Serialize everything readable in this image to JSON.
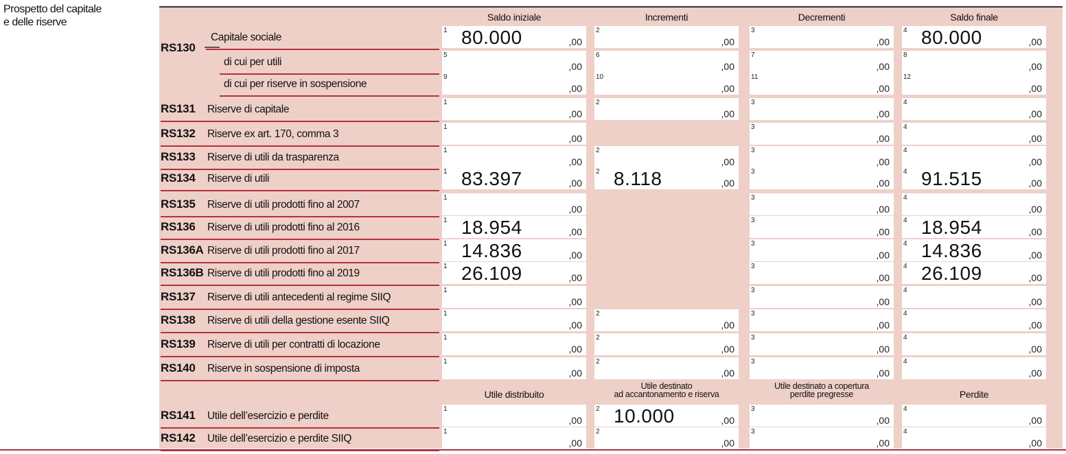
{
  "section": {
    "line1": "Prospetto del capitale",
    "line2": "e delle riserve"
  },
  "headers": {
    "top": [
      "Saldo iniziale",
      "Incrementi",
      "Decrementi",
      "Saldo finale"
    ],
    "bottom": [
      {
        "line1": "Utile distribuito",
        "line2": ""
      },
      {
        "line1": "Utile destinato",
        "line2": "ad accantonamento e riserva"
      },
      {
        "line1": "Utile destinato a copertura",
        "line2": "perdite pregresse"
      },
      {
        "line1": "Perdite",
        "line2": ""
      }
    ]
  },
  "cents": ",00",
  "rows": [
    {
      "code": "RS130",
      "desc": "Capitale sociale",
      "fields": [
        {
          "n": "1",
          "v": "80.000"
        },
        {
          "n": "2",
          "v": ""
        },
        {
          "n": "3",
          "v": ""
        },
        {
          "n": "4",
          "v": "80.000"
        }
      ]
    },
    {
      "code": "",
      "desc": "di cui per utili",
      "fields": [
        {
          "n": "5",
          "v": ""
        },
        {
          "n": "6",
          "v": ""
        },
        {
          "n": "7",
          "v": ""
        },
        {
          "n": "8",
          "v": ""
        }
      ]
    },
    {
      "code": "",
      "desc": "di cui per riserve in sospensione",
      "fields": [
        {
          "n": "9",
          "v": ""
        },
        {
          "n": "10",
          "v": ""
        },
        {
          "n": "11",
          "v": ""
        },
        {
          "n": "12",
          "v": ""
        }
      ]
    },
    {
      "code": "RS131",
      "desc": "Riserve di capitale",
      "fields": [
        {
          "n": "1",
          "v": ""
        },
        {
          "n": "2",
          "v": ""
        },
        {
          "n": "3",
          "v": ""
        },
        {
          "n": "4",
          "v": ""
        }
      ]
    },
    {
      "code": "RS132",
      "desc": "Riserve ex art. 170, comma 3",
      "fields": [
        {
          "n": "1",
          "v": ""
        },
        null,
        {
          "n": "3",
          "v": ""
        },
        {
          "n": "4",
          "v": ""
        }
      ]
    },
    {
      "code": "RS133",
      "desc": "Riserve di utili da trasparenza",
      "fields": [
        {
          "n": "1",
          "v": ""
        },
        {
          "n": "2",
          "v": ""
        },
        {
          "n": "3",
          "v": ""
        },
        {
          "n": "4",
          "v": ""
        }
      ]
    },
    {
      "code": "RS134",
      "desc": "Riserve di utili",
      "fields": [
        {
          "n": "1",
          "v": "83.397"
        },
        {
          "n": "2",
          "v": "8.118"
        },
        {
          "n": "3",
          "v": ""
        },
        {
          "n": "4",
          "v": "91.515"
        }
      ]
    },
    {
      "code": "RS135",
      "desc": "Riserve di utili prodotti fino al 2007",
      "fields": [
        {
          "n": "1",
          "v": ""
        },
        null,
        {
          "n": "3",
          "v": ""
        },
        {
          "n": "4",
          "v": ""
        }
      ]
    },
    {
      "code": "RS136",
      "desc": "Riserve di utili prodotti fino al 2016",
      "fields": [
        {
          "n": "1",
          "v": "18.954"
        },
        null,
        {
          "n": "3",
          "v": ""
        },
        {
          "n": "4",
          "v": "18.954"
        }
      ]
    },
    {
      "code": "RS136A",
      "desc": "Riserve di utili prodotti fino al 2017",
      "fields": [
        {
          "n": "1",
          "v": "14.836"
        },
        null,
        {
          "n": "3",
          "v": ""
        },
        {
          "n": "4",
          "v": "14.836"
        }
      ]
    },
    {
      "code": "RS136B",
      "desc": "Riserve di utili prodotti fino al 2019",
      "fields": [
        {
          "n": "1",
          "v": "26.109"
        },
        null,
        {
          "n": "3",
          "v": ""
        },
        {
          "n": "4",
          "v": "26.109"
        }
      ]
    },
    {
      "code": "RS137",
      "desc": "Riserve di utili antecedenti al regime SIIQ",
      "fields": [
        {
          "n": "1",
          "v": ""
        },
        null,
        {
          "n": "3",
          "v": ""
        },
        {
          "n": "4",
          "v": ""
        }
      ]
    },
    {
      "code": "RS138",
      "desc": "Riserve di utili della gestione esente SIIQ",
      "fields": [
        {
          "n": "1",
          "v": ""
        },
        {
          "n": "2",
          "v": ""
        },
        {
          "n": "3",
          "v": ""
        },
        {
          "n": "4",
          "v": ""
        }
      ]
    },
    {
      "code": "RS139",
      "desc": "Riserve di utili per contratti di locazione",
      "fields": [
        {
          "n": "1",
          "v": ""
        },
        {
          "n": "2",
          "v": ""
        },
        {
          "n": "3",
          "v": ""
        },
        {
          "n": "4",
          "v": ""
        }
      ]
    },
    {
      "code": "RS140",
      "desc": "Riserve in sospensione di imposta",
      "fields": [
        {
          "n": "1",
          "v": ""
        },
        {
          "n": "2",
          "v": ""
        },
        {
          "n": "3",
          "v": ""
        },
        {
          "n": "4",
          "v": ""
        }
      ]
    },
    {
      "code": "RS141",
      "desc": "Utile dell’esercizio e perdite",
      "fields": [
        {
          "n": "1",
          "v": ""
        },
        {
          "n": "2",
          "v": "10.000"
        },
        {
          "n": "3",
          "v": ""
        },
        {
          "n": "4",
          "v": ""
        }
      ]
    },
    {
      "code": "RS142",
      "desc": "Utile dell’esercizio e perdite SIIQ",
      "fields": [
        {
          "n": "1",
          "v": ""
        },
        {
          "n": "2",
          "v": ""
        },
        {
          "n": "3",
          "v": ""
        },
        {
          "n": "4",
          "v": ""
        }
      ]
    }
  ]
}
